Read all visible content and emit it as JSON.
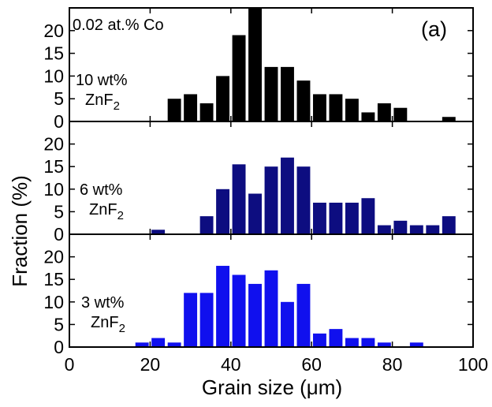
{
  "figure": {
    "panel_label": "(a)",
    "xlabel": "Grain size (μm)",
    "ylabel": "Fraction (%)",
    "annotation": "0.02 at.% Co"
  },
  "chart_data": [
    {
      "type": "bar",
      "label_line1": "10 wt%",
      "label_line2_main": "ZnF",
      "label_line2_sub": "2",
      "color": "#000000",
      "xlim": [
        0,
        100
      ],
      "ylim": [
        0,
        25
      ],
      "yticks": [
        0,
        5,
        10,
        15,
        20
      ],
      "x": [
        26,
        30,
        34,
        38,
        42,
        46,
        50,
        54,
        58,
        62,
        66,
        70,
        74,
        78,
        82,
        86,
        90,
        94
      ],
      "values": [
        5,
        6,
        4,
        10,
        19,
        25,
        12,
        12,
        9,
        6,
        6,
        5,
        2,
        4,
        3,
        0,
        0,
        1
      ]
    },
    {
      "type": "bar",
      "label_line1": "6 wt%",
      "label_line2_main": "ZnF",
      "label_line2_sub": "2",
      "color": "#0d0d80",
      "xlim": [
        0,
        100
      ],
      "ylim": [
        0,
        25
      ],
      "yticks": [
        0,
        5,
        10,
        15,
        20
      ],
      "x": [
        22,
        26,
        30,
        34,
        38,
        42,
        46,
        50,
        54,
        58,
        62,
        66,
        70,
        74,
        78,
        82,
        86,
        90,
        94
      ],
      "values": [
        1,
        0,
        0,
        4,
        10,
        15.5,
        9,
        15,
        17,
        15,
        7,
        7,
        7,
        8,
        2,
        3,
        2,
        2,
        4
      ]
    },
    {
      "type": "bar",
      "label_line1": "3 wt%",
      "label_line2_main": "ZnF",
      "label_line2_sub": "2",
      "color": "#1010ee",
      "xlim": [
        0,
        100
      ],
      "ylim": [
        0,
        25
      ],
      "yticks": [
        0,
        5,
        10,
        15,
        20
      ],
      "x": [
        18,
        22,
        26,
        30,
        34,
        38,
        42,
        46,
        50,
        54,
        58,
        62,
        66,
        70,
        74,
        78,
        82,
        86
      ],
      "values": [
        1,
        2,
        1,
        12,
        12,
        18,
        16,
        14,
        17,
        10,
        14,
        3,
        4,
        2,
        2,
        1,
        0,
        1
      ]
    }
  ],
  "x_axis": {
    "ticks": [
      0,
      20,
      40,
      60,
      80,
      100
    ],
    "tick_labels": [
      "0",
      "20",
      "40",
      "60",
      "80",
      "100"
    ]
  }
}
